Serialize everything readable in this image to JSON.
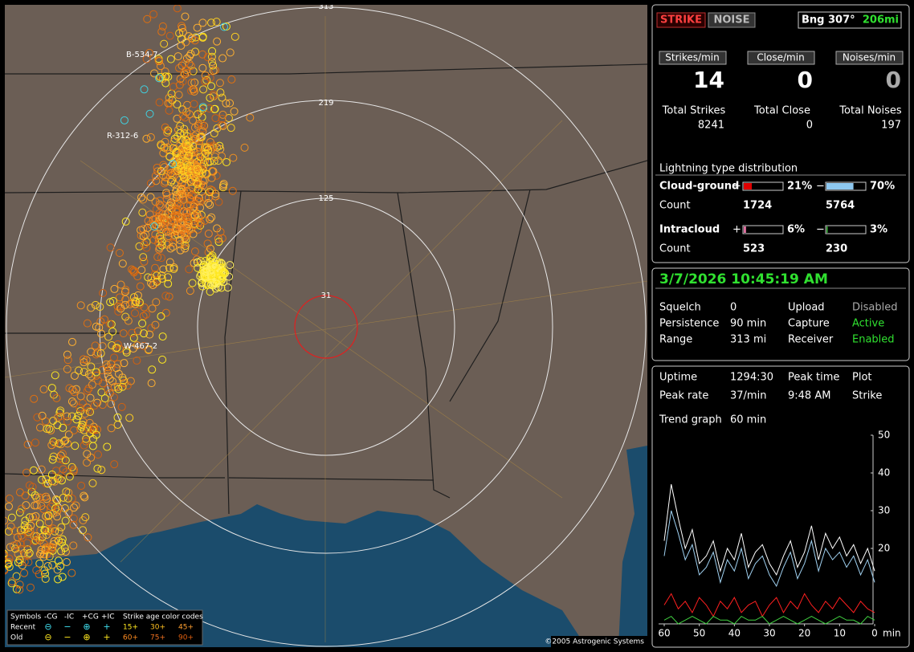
{
  "map": {
    "range_labels": [
      313,
      219,
      125,
      31
    ],
    "station_labels": [
      "B-534-7",
      "R-312-6",
      "W-467-2"
    ],
    "copyright": "©2005 Astrogenic Systems",
    "legend": {
      "symbols_title": "Symbols",
      "symbol_headers": [
        "-CG",
        "-IC",
        "+CG",
        "+IC"
      ],
      "age_title": "Strike age color codes",
      "rows": [
        {
          "label": "Recent",
          "ages": [
            "15+",
            "30+",
            "45+"
          ]
        },
        {
          "label": "Old",
          "ages": [
            "60+",
            "75+",
            "90+"
          ]
        }
      ]
    }
  },
  "header": {
    "strike_button": "STRIKE",
    "noise_button": "NOISE",
    "bearing": "Bng 307°",
    "distance": "206mi"
  },
  "rates": [
    {
      "label": "Strikes/min",
      "value": 14,
      "total_label": "Total Strikes",
      "total": 8241
    },
    {
      "label": "Close/min",
      "value": 0,
      "total_label": "Total Close",
      "total": 0
    },
    {
      "label": "Noises/min",
      "value": 0,
      "total_label": "Total Noises",
      "total": 197
    }
  ],
  "distribution": {
    "title": "Lightning type distribution",
    "rows": [
      {
        "label": "Cloud-ground",
        "plus_sign": "+",
        "plus": {
          "value": 21,
          "label": "21%"
        },
        "plus_color": "#e00000",
        "minus_sign": "−",
        "minus": {
          "value": 70,
          "label": "70%"
        },
        "minus_color": "#8ec8f0",
        "count_label": "Count",
        "plus_count": 1724,
        "minus_count": 5764
      },
      {
        "label": "Intracloud",
        "plus_sign": "+",
        "plus": {
          "value": 6,
          "label": "6%"
        },
        "plus_color": "#e070a0",
        "minus_sign": "−",
        "minus": {
          "value": 3,
          "label": "3%"
        },
        "minus_color": "#40c040",
        "count_label": "Count",
        "plus_count": 523,
        "minus_count": 230
      }
    ]
  },
  "status": {
    "datetime": "3/7/2026 10:45:19 AM",
    "settings": [
      [
        "Squelch",
        "0",
        "Upload",
        "Disabled"
      ],
      [
        "Persistence",
        "90 min",
        "Capture",
        "Active"
      ],
      [
        "Range",
        "313 mi",
        "Receiver",
        "Enabled"
      ]
    ]
  },
  "stats": {
    "rows": [
      [
        "Uptime",
        "1294:30",
        "Peak time",
        "Plot"
      ],
      [
        "Peak rate",
        "37/min",
        "9:48 AM",
        "Strike"
      ]
    ],
    "trend_label": "Trend graph",
    "trend_span": "60 min"
  },
  "trend": {
    "type": "line",
    "x": [
      60,
      58,
      56,
      54,
      52,
      50,
      48,
      46,
      44,
      42,
      40,
      38,
      36,
      34,
      32,
      30,
      28,
      26,
      24,
      22,
      20,
      18,
      16,
      14,
      12,
      10,
      8,
      6,
      4,
      2,
      0
    ],
    "xlim": [
      60,
      0
    ],
    "xticks": [
      60,
      50,
      40,
      30,
      20,
      10,
      0
    ],
    "x_unit": "min",
    "ylim": [
      0,
      50
    ],
    "yticks": [
      50,
      40,
      30,
      20
    ],
    "series": [
      {
        "color": "#ffffff",
        "values": [
          22,
          37,
          28,
          20,
          25,
          16,
          18,
          22,
          14,
          20,
          17,
          24,
          15,
          19,
          21,
          16,
          13,
          18,
          22,
          15,
          19,
          26,
          17,
          24,
          20,
          23,
          18,
          21,
          16,
          20,
          14
        ]
      },
      {
        "color": "#9fd0f0",
        "values": [
          18,
          30,
          24,
          17,
          21,
          13,
          15,
          19,
          11,
          17,
          14,
          20,
          12,
          16,
          18,
          13,
          10,
          15,
          19,
          12,
          16,
          22,
          14,
          20,
          17,
          19,
          15,
          18,
          13,
          17,
          11
        ]
      },
      {
        "color": "#ff2020",
        "values": [
          5,
          8,
          4,
          6,
          3,
          7,
          5,
          2,
          6,
          4,
          7,
          3,
          5,
          6,
          2,
          5,
          7,
          3,
          6,
          4,
          8,
          5,
          3,
          6,
          4,
          7,
          5,
          3,
          6,
          4,
          3
        ]
      },
      {
        "color": "#40d040",
        "values": [
          1,
          2,
          0,
          1,
          2,
          1,
          0,
          2,
          1,
          1,
          0,
          2,
          1,
          1,
          2,
          0,
          1,
          2,
          1,
          0,
          1,
          2,
          1,
          0,
          1,
          2,
          1,
          1,
          0,
          2,
          1
        ]
      }
    ]
  }
}
